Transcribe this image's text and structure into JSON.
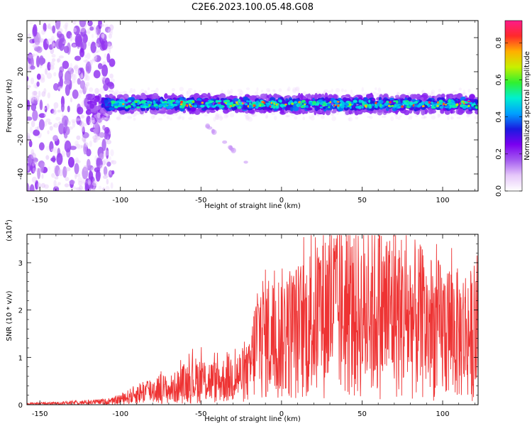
{
  "figure_title": "C2E6.2023.100.05.48.G08",
  "colors": {
    "snr_line": "#ee3333",
    "colormap": [
      "#ffffff",
      "#e6c8fa",
      "#a45af0",
      "#7a00f0",
      "#1a1ae0",
      "#00a0ff",
      "#00f0d0",
      "#30f030",
      "#c8f000",
      "#ffb000",
      "#ff2a2a",
      "#ff1a8a"
    ]
  },
  "chart_data": [
    {
      "type": "heatmap",
      "xlabel": "Height of straight line (km)",
      "ylabel": "Frequency (Hz)",
      "xlim": [
        -158,
        122
      ],
      "ylim": [
        -50,
        50
      ],
      "x_ticks": [
        "-150",
        "-100",
        "-50",
        "0",
        "50",
        "100"
      ],
      "x_tick_values": [
        -150,
        -100,
        -50,
        0,
        50,
        100
      ],
      "y_ticks": [
        "-40",
        "-20",
        "0",
        "20",
        "40"
      ],
      "y_tick_values": [
        -40,
        -20,
        0,
        20,
        40
      ],
      "colorbar": {
        "label": "Normalized spectral amplitude",
        "range": [
          0,
          0.92
        ],
        "ticks": [
          "0.0",
          "0.2",
          "0.4",
          "0.6",
          "0.8"
        ],
        "tick_values": [
          0,
          0.2,
          0.4,
          0.6,
          0.8
        ]
      },
      "features": [
        {
          "name": "noise_region",
          "x_range": [
            -158,
            -110
          ],
          "freq_range": [
            -50,
            50
          ],
          "amplitude": 0.1
        },
        {
          "name": "signal_band",
          "x_range": [
            -120,
            122
          ],
          "center_freq": 1,
          "half_width_hz": 5,
          "amplitude": 0.5
        },
        {
          "name": "scattered_streak",
          "x_range": [
            -48,
            -20
          ],
          "freq_range": [
            -35,
            -10
          ],
          "amplitude": 0.08
        }
      ]
    },
    {
      "type": "line",
      "xlabel": "Height of straight line (km)",
      "ylabel": "SNR (10 * v/v)",
      "y_multiplier": "(x10",
      "y_multiplier_exp": "4",
      "xlim": [
        -158,
        122
      ],
      "ylim": [
        0,
        3.6
      ],
      "x_ticks": [
        "-150",
        "-100",
        "-50",
        "0",
        "50",
        "100"
      ],
      "x_tick_values": [
        -150,
        -100,
        -50,
        0,
        50,
        100
      ],
      "y_ticks": [
        "0",
        "1",
        "2",
        "3"
      ],
      "y_tick_values": [
        0,
        1,
        2,
        3
      ],
      "series": [
        {
          "x": [
            -158,
            -140,
            -120,
            -105,
            -100,
            -95,
            -90,
            -85,
            -80,
            -75,
            -70,
            -65,
            -60,
            -55,
            -50,
            -45,
            -40,
            -35,
            -30,
            -25,
            -20,
            -17,
            -15,
            -10,
            -5,
            0,
            5,
            10,
            15,
            20,
            25,
            30,
            35,
            40,
            45,
            50,
            55,
            60,
            65,
            70,
            75,
            80,
            85,
            90,
            95,
            100,
            105,
            110,
            115,
            122
          ],
          "values": [
            0.02,
            0.03,
            0.05,
            0.07,
            0.12,
            0.16,
            0.22,
            0.28,
            0.3,
            0.34,
            0.3,
            0.36,
            0.45,
            0.5,
            0.52,
            0.5,
            0.46,
            0.52,
            0.58,
            0.6,
            0.66,
            1.1,
            1.4,
            1.45,
            1.38,
            1.45,
            1.5,
            1.52,
            1.6,
            1.78,
            1.92,
            2.02,
            1.95,
            1.9,
            1.82,
            1.88,
            1.9,
            1.95,
            1.88,
            2.0,
            1.82,
            1.78,
            1.72,
            1.62,
            1.58,
            1.52,
            1.6,
            1.42,
            1.52,
            1.3
          ],
          "note": "envelope of oscillating trace"
        }
      ]
    }
  ]
}
